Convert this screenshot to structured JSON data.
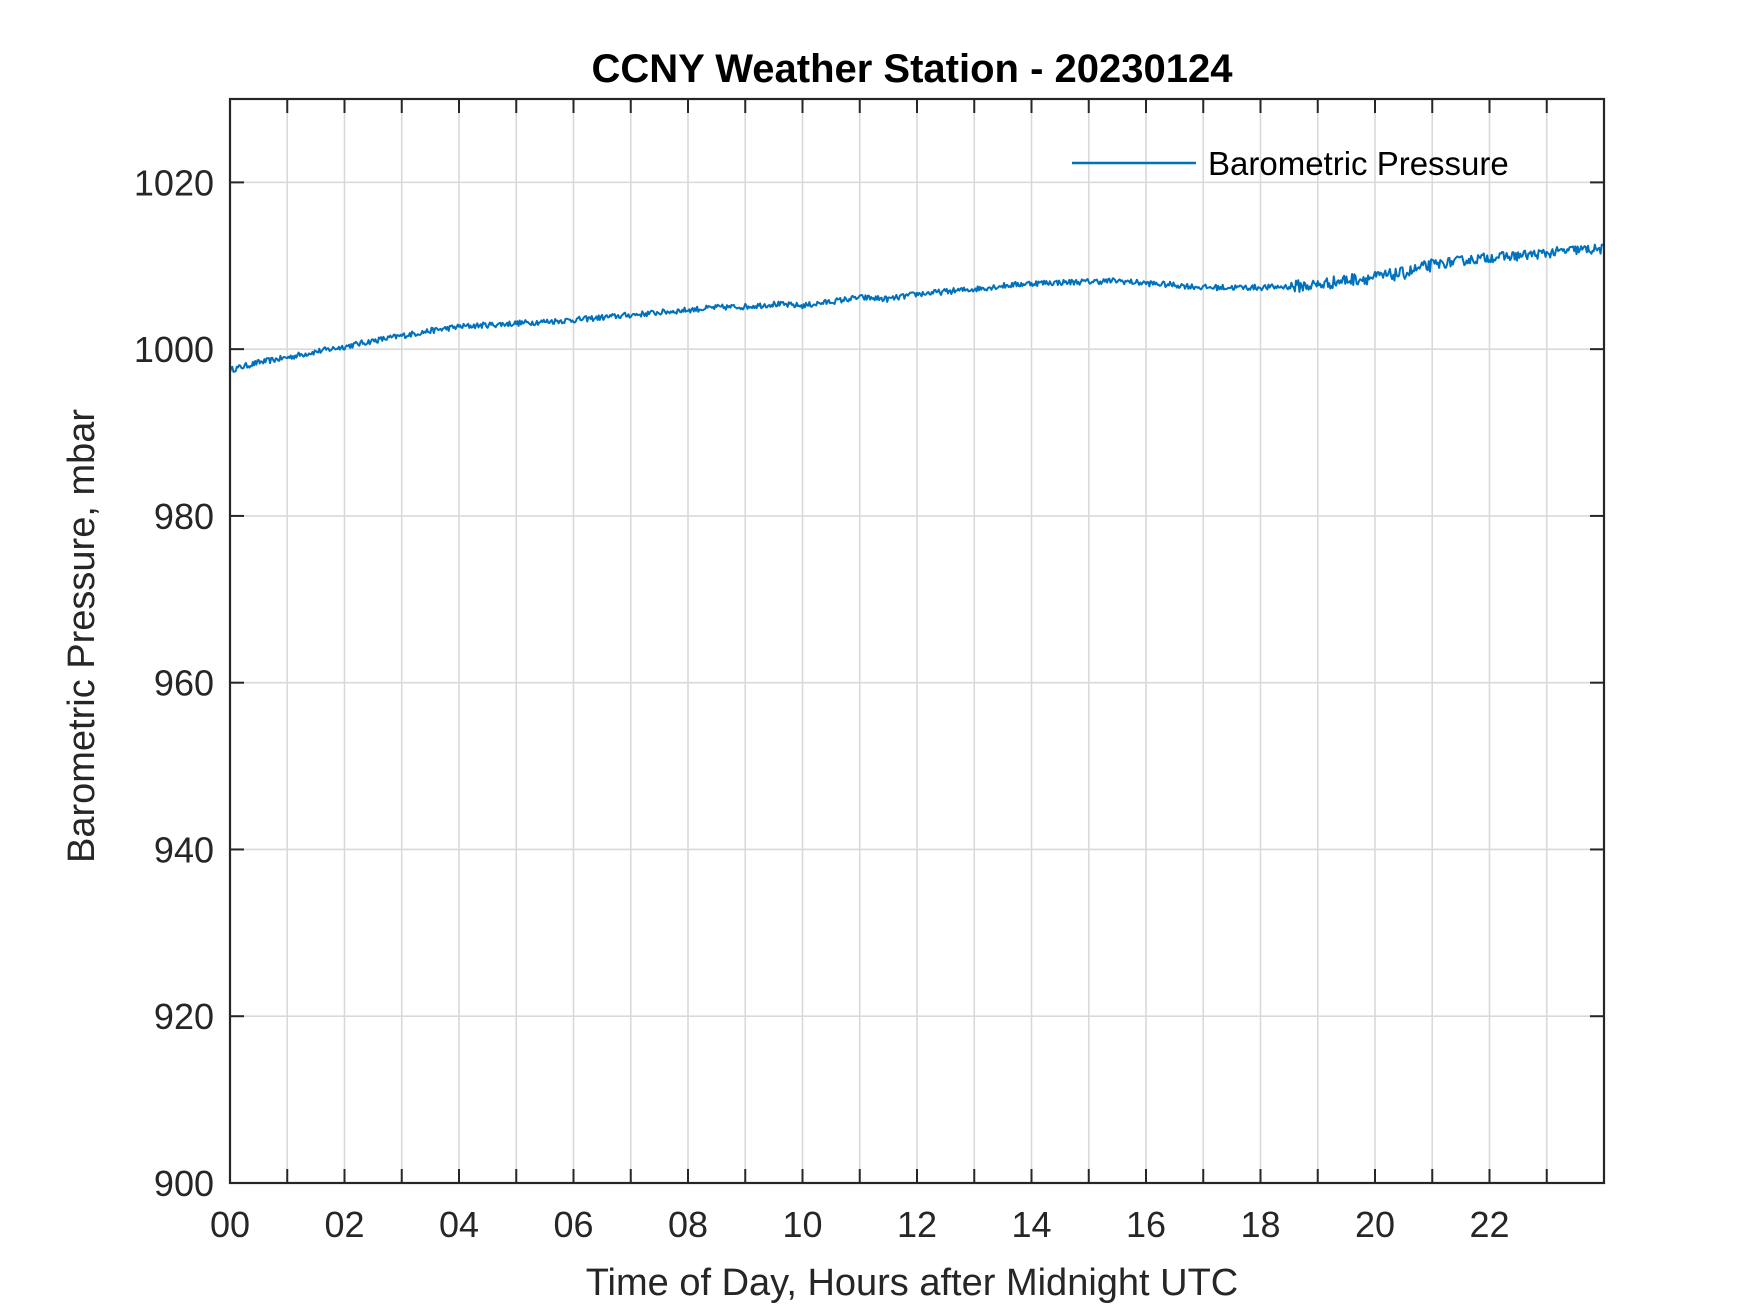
{
  "chart_data": {
    "type": "line",
    "title": "CCNY Weather Station - 20230124",
    "xlabel": "Time of Day, Hours after Midnight UTC",
    "ylabel": "Barometric Pressure, mbar",
    "xlim": [
      0,
      24
    ],
    "ylim": [
      900,
      1030
    ],
    "x_ticks": [
      0,
      2,
      4,
      6,
      8,
      10,
      12,
      14,
      16,
      18,
      20,
      22
    ],
    "x_tick_labels": [
      "00",
      "02",
      "04",
      "06",
      "08",
      "10",
      "12",
      "14",
      "16",
      "18",
      "20",
      "22"
    ],
    "x_minor_grid_step": 1,
    "y_ticks": [
      900,
      920,
      940,
      960,
      980,
      1000,
      1020
    ],
    "y_tick_labels": [
      "900",
      "920",
      "940",
      "960",
      "980",
      "1000",
      "1020"
    ],
    "grid": true,
    "legend": {
      "entries": [
        "Barometric Pressure"
      ],
      "location": "top-right"
    },
    "colors": {
      "series": "#0072BD",
      "grid": "#d9d9d9",
      "axis": "#262626"
    },
    "series": [
      {
        "name": "Barometric Pressure",
        "x": [
          0,
          0.5,
          1,
          1.5,
          2,
          2.5,
          3,
          3.5,
          4,
          4.5,
          5,
          5.5,
          6,
          6.5,
          7,
          7.5,
          8,
          8.5,
          9,
          9.5,
          10,
          10.5,
          11,
          11.5,
          12,
          12.5,
          13,
          13.5,
          14,
          14.5,
          15,
          15.5,
          16,
          16.5,
          17,
          17.5,
          18,
          18.5,
          19,
          19.5,
          20,
          20.5,
          21,
          21.5,
          22,
          22.5,
          23,
          23.5,
          24
        ],
        "y": [
          997.5,
          998.4,
          999.0,
          999.7,
          1000.3,
          1001.0,
          1001.6,
          1002.2,
          1002.7,
          1002.9,
          1003.1,
          1003.3,
          1003.5,
          1003.8,
          1004.1,
          1004.4,
          1004.7,
          1005.0,
          1005.1,
          1005.4,
          1005.2,
          1005.7,
          1006.2,
          1006.0,
          1006.6,
          1006.9,
          1007.2,
          1007.6,
          1007.9,
          1008.0,
          1008.1,
          1008.2,
          1007.9,
          1007.7,
          1007.4,
          1007.4,
          1007.4,
          1007.5,
          1007.7,
          1008.3,
          1008.6,
          1009.1,
          1010.1,
          1010.6,
          1011.0,
          1011.2,
          1011.5,
          1011.9,
          1012.0
        ]
      }
    ]
  }
}
